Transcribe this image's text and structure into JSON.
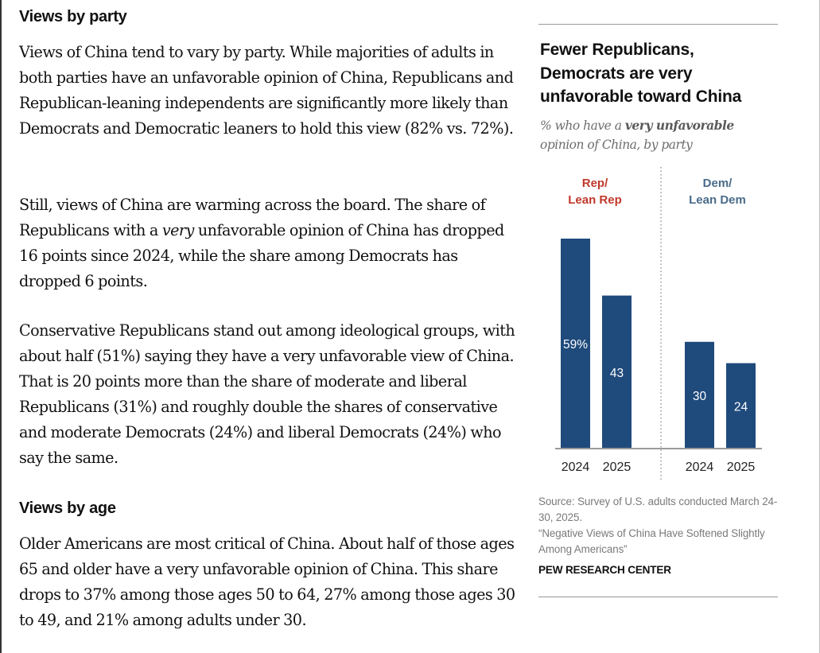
{
  "article": {
    "section1_heading": "Views by party",
    "p1": "Views of China tend to vary by party. While majorities of adults in both parties have an unfavorable opinion of China, Republicans and Republican-leaning independents are significantly more likely than Democrats and Democratic leaners to hold this view (82% vs. 72%).",
    "p2_before": "Still, views of China are warming across the board. The share of Republicans with a ",
    "p2_em": "very",
    "p2_after": " unfavorable opinion of China has dropped 16 points since 2024, while the share among Democrats has dropped 6 points.",
    "p3": "Conservative Republicans stand out among ideological groups, with about half (51%) saying they have a very unfavorable view of China. That is 20 points more than the share of moderate and liberal Republicans (31%) and roughly double the shares of conservative and moderate Democrats (24%) and liberal Democrats (24%) who say the same.",
    "section2_heading": "Views by age",
    "p4": "Older Americans are most critical of China. About half of those ages 65 and older have a very unfavorable opinion of China. This share drops to 37% among those ages 50 to 64, 27% among those ages 30 to 49, and 21% among adults under 30."
  },
  "chart_data": {
    "type": "bar",
    "title": "Fewer Republicans, Democrats are very unfavorable toward China",
    "subtitle_before": "% who have a ",
    "subtitle_bold": "very unfavorable",
    "subtitle_after": " opinion of China, by party",
    "groups": [
      {
        "name_line1": "Rep/",
        "name_line2": "Lean Rep",
        "color": "#c0392b"
      },
      {
        "name_line1": "Dem/",
        "name_line2": "Lean Dem",
        "color": "#4a6b8a"
      }
    ],
    "categories": [
      "2024",
      "2025"
    ],
    "series": [
      {
        "name": "Rep/Lean Rep",
        "values": [
          59,
          43
        ],
        "labels": [
          "59%",
          "43"
        ]
      },
      {
        "name": "Dem/Lean Dem",
        "values": [
          30,
          24
        ],
        "labels": [
          "30",
          "24"
        ]
      }
    ],
    "bar_color": "#1f4a7c",
    "ylim": [
      0,
      60
    ],
    "grid": false,
    "source_line1": "Source: Survey of U.S. adults conducted March 24-30, 2025.",
    "source_line2": "“Negative Views of China Have Softened Slightly Among Americans”",
    "organization": "PEW RESEARCH CENTER"
  }
}
